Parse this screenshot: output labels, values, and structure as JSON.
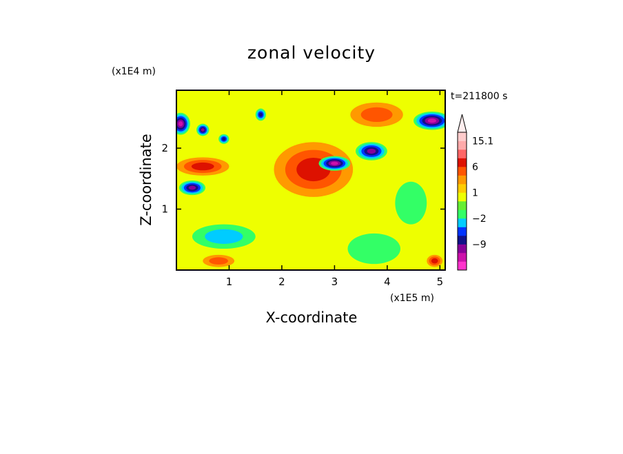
{
  "chart_data": {
    "type": "heatmap",
    "title": "zonal velocity",
    "xlabel": "X-coordinate",
    "ylabel": "Z-coordinate",
    "x_scale_label": "(x1E5 m)",
    "y_scale_label": "(x1E4 m)",
    "time_label": "t=211800 s",
    "xlim": [
      0,
      5.1
    ],
    "ylim": [
      0,
      2.95
    ],
    "x_ticks": [
      1,
      2,
      3,
      4,
      5
    ],
    "y_ticks": [
      1,
      2
    ],
    "colorbar": {
      "extend_top": true,
      "levels_bottom_to_top": [
        -15,
        -12,
        -9,
        -6,
        -4,
        -2,
        -1,
        0,
        1,
        2,
        4,
        6,
        9,
        12,
        15.1
      ],
      "colors_bottom_to_top": [
        "#ff33cc",
        "#cc11aa",
        "#880099",
        "#111188",
        "#0033ff",
        "#00ccff",
        "#33ff66",
        "#66ee33",
        "#eeff00",
        "#ffcc00",
        "#ff9900",
        "#ff5500",
        "#dd1100",
        "#ff6666",
        "#ffaaaa",
        "#ffcccc"
      ],
      "tick_labels": [
        "15.1",
        "6",
        "1",
        "−2",
        "−9"
      ]
    },
    "features": [
      {
        "x": 2.6,
        "z": 1.65,
        "value": 8,
        "sx": 0.75,
        "sz": 0.45
      },
      {
        "x": 0.08,
        "z": 2.4,
        "value": -12,
        "sx": 0.18,
        "sz": 0.18
      },
      {
        "x": 0.5,
        "z": 2.3,
        "value": -9,
        "sx": 0.12,
        "sz": 0.1
      },
      {
        "x": 0.9,
        "z": 2.15,
        "value": -7,
        "sx": 0.1,
        "sz": 0.08
      },
      {
        "x": 1.6,
        "z": 2.55,
        "value": -6,
        "sx": 0.1,
        "sz": 0.1
      },
      {
        "x": 3.0,
        "z": 1.75,
        "value": -12,
        "sx": 0.3,
        "sz": 0.12
      },
      {
        "x": 3.7,
        "z": 1.95,
        "value": -9,
        "sx": 0.3,
        "sz": 0.15
      },
      {
        "x": 4.85,
        "z": 2.45,
        "value": -12,
        "sx": 0.35,
        "sz": 0.15
      },
      {
        "x": 0.3,
        "z": 1.35,
        "value": -9,
        "sx": 0.25,
        "sz": 0.12
      },
      {
        "x": 0.5,
        "z": 1.7,
        "value": 6,
        "sx": 0.5,
        "sz": 0.15
      },
      {
        "x": 3.8,
        "z": 2.55,
        "value": 5,
        "sx": 0.5,
        "sz": 0.2
      },
      {
        "x": 0.9,
        "z": 0.55,
        "value": -2,
        "sx": 0.6,
        "sz": 0.2
      },
      {
        "x": 3.75,
        "z": 0.35,
        "value": -1,
        "sx": 0.5,
        "sz": 0.25
      },
      {
        "x": 4.45,
        "z": 1.1,
        "value": -1,
        "sx": 0.3,
        "sz": 0.35
      },
      {
        "x": 0.8,
        "z": 0.15,
        "value": 4,
        "sx": 0.3,
        "sz": 0.1
      },
      {
        "x": 4.9,
        "z": 0.15,
        "value": 6,
        "sx": 0.15,
        "sz": 0.1
      }
    ]
  }
}
